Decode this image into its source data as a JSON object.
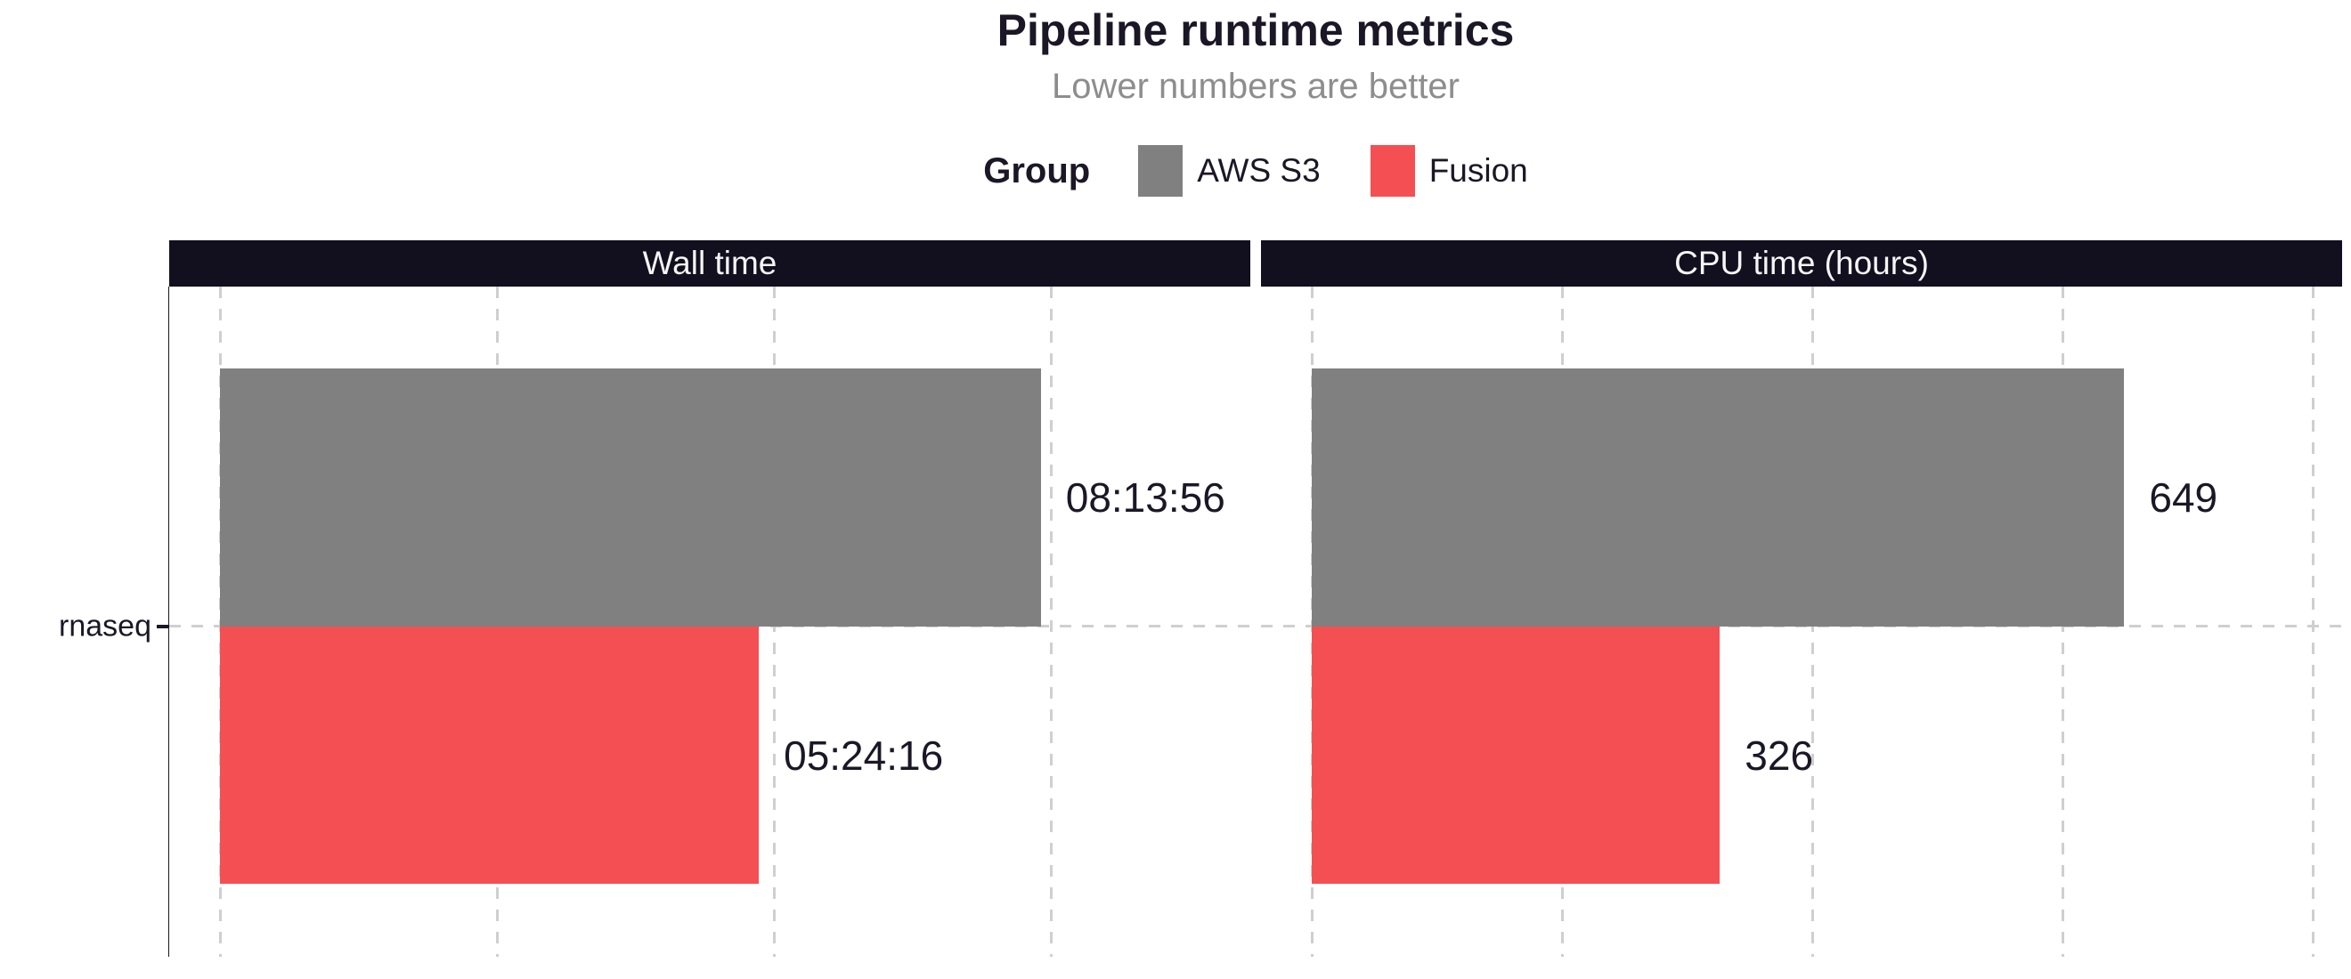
{
  "title": "Pipeline runtime metrics",
  "subtitle": "Lower numbers are better",
  "legend": {
    "title": "Group",
    "items": [
      {
        "label": "AWS S3",
        "color": "#808080"
      },
      {
        "label": "Fusion",
        "color": "#f45053"
      }
    ]
  },
  "y_axis": {
    "category": "rnaseq"
  },
  "chart_data": {
    "type": "bar",
    "orientation": "horizontal",
    "title": "Pipeline runtime metrics",
    "subtitle": "Lower numbers are better",
    "legend_title": "Group",
    "legend_position": "top",
    "grid": "dashed",
    "categories": [
      "rnaseq"
    ],
    "facets": [
      {
        "title": "Wall time",
        "unit": "seconds",
        "xlim": [
          0,
          37200
        ],
        "gridline_values": [
          0,
          10000,
          20000,
          30000
        ],
        "series": [
          {
            "name": "AWS S3",
            "value": 29636,
            "label": "08:13:56",
            "color": "#808080"
          },
          {
            "name": "Fusion",
            "value": 19456,
            "label": "05:24:16",
            "color": "#f45053"
          }
        ]
      },
      {
        "title": "CPU time (hours)",
        "unit": "hours",
        "xlim": [
          0,
          823
        ],
        "gridline_values": [
          0,
          200,
          400,
          600,
          800
        ],
        "series": [
          {
            "name": "AWS S3",
            "value": 649,
            "label": "649",
            "color": "#808080"
          },
          {
            "name": "Fusion",
            "value": 326,
            "label": "326",
            "color": "#f45053"
          }
        ]
      }
    ]
  },
  "colors": {
    "ink": "#1b1726",
    "subtitle_text": "#8d8d8d",
    "strip_bg": "#120f1f",
    "strip_text": "#f5f5f5",
    "gridline": "#cfcfcf",
    "bar_gray": "#808080",
    "bar_red": "#f45053"
  }
}
